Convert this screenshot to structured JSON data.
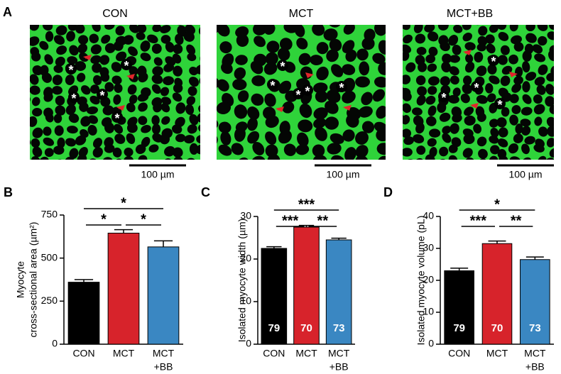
{
  "panel_a": {
    "label": "A",
    "cell_marker": "*",
    "images": [
      {
        "title": "CON",
        "scale_bar": "100 µm"
      },
      {
        "title": "MCT",
        "scale_bar": "100 µm"
      },
      {
        "title": "MCT+BB",
        "scale_bar": "100 µm"
      }
    ]
  },
  "chart_data": [
    {
      "type": "bar",
      "panel": "B",
      "ylabel": [
        "Myocyte",
        "cross-sectional area (µm²)"
      ],
      "categories": [
        [
          "CON"
        ],
        [
          "MCT"
        ],
        [
          "MCT",
          "+BB"
        ]
      ],
      "values": [
        360,
        645,
        565
      ],
      "errors": [
        15,
        20,
        35
      ],
      "colors": [
        "#000000",
        "#d7232b",
        "#3a87c2"
      ],
      "ylim": [
        0,
        750
      ],
      "yticks": [
        0,
        250,
        500,
        750
      ],
      "significance": [
        {
          "from": 0,
          "to": 1,
          "label": "*"
        },
        {
          "from": 1,
          "to": 2,
          "label": "*"
        },
        {
          "from": 0,
          "to": 2,
          "label": "*"
        }
      ]
    },
    {
      "type": "bar",
      "panel": "C",
      "ylabel": [
        "Isolated myocyte width (µm)"
      ],
      "categories": [
        [
          "CON"
        ],
        [
          "MCT"
        ],
        [
          "MCT",
          "+BB"
        ]
      ],
      "values": [
        22.5,
        27.5,
        24.5
      ],
      "errors": [
        0.4,
        0.4,
        0.4
      ],
      "n_labels": [
        "79",
        "70",
        "73"
      ],
      "colors": [
        "#000000",
        "#d7232b",
        "#3a87c2"
      ],
      "ylim": [
        0,
        30
      ],
      "yticks": [
        0,
        10,
        20,
        30
      ],
      "significance": [
        {
          "from": 0,
          "to": 1,
          "label": "***"
        },
        {
          "from": 1,
          "to": 2,
          "label": "**"
        },
        {
          "from": 0,
          "to": 2,
          "label": "***"
        }
      ]
    },
    {
      "type": "bar",
      "panel": "D",
      "ylabel": [
        "Isolated myocyte volume (pL)"
      ],
      "categories": [
        [
          "CON"
        ],
        [
          "MCT"
        ],
        [
          "MCT",
          "+BB"
        ]
      ],
      "values": [
        23,
        31.5,
        26.5
      ],
      "errors": [
        0.8,
        0.8,
        0.8
      ],
      "n_labels": [
        "79",
        "70",
        "73"
      ],
      "colors": [
        "#000000",
        "#d7232b",
        "#3a87c2"
      ],
      "ylim": [
        0,
        40
      ],
      "yticks": [
        0,
        10,
        20,
        30,
        40
      ],
      "significance": [
        {
          "from": 0,
          "to": 1,
          "label": "***"
        },
        {
          "from": 1,
          "to": 2,
          "label": "**"
        },
        {
          "from": 0,
          "to": 2,
          "label": "*"
        }
      ]
    }
  ]
}
